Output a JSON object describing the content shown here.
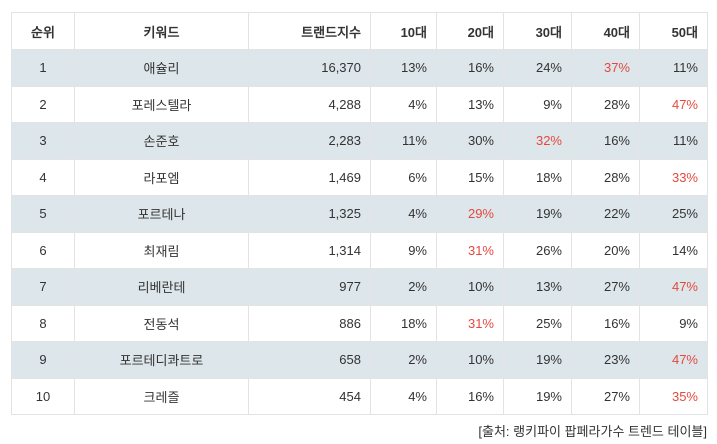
{
  "table": {
    "headers": {
      "rank": "순위",
      "keyword": "키워드",
      "index": "트랜드지수",
      "age10": "10대",
      "age20": "20대",
      "age30": "30대",
      "age40": "40대",
      "age50": "50대"
    },
    "highlight_color": "#e4493f",
    "shade_color": "#dde6ea",
    "rows": [
      {
        "rank": "1",
        "keyword": "애슐리",
        "index": "16,370",
        "age10": "13%",
        "age20": "16%",
        "age30": "24%",
        "age40": "37%",
        "age50": "11%",
        "highlight": "age40"
      },
      {
        "rank": "2",
        "keyword": "포레스텔라",
        "index": "4,288",
        "age10": "4%",
        "age20": "13%",
        "age30": "9%",
        "age40": "28%",
        "age50": "47%",
        "highlight": "age50"
      },
      {
        "rank": "3",
        "keyword": "손준호",
        "index": "2,283",
        "age10": "11%",
        "age20": "30%",
        "age30": "32%",
        "age40": "16%",
        "age50": "11%",
        "highlight": "age30"
      },
      {
        "rank": "4",
        "keyword": "라포엠",
        "index": "1,469",
        "age10": "6%",
        "age20": "15%",
        "age30": "18%",
        "age40": "28%",
        "age50": "33%",
        "highlight": "age50"
      },
      {
        "rank": "5",
        "keyword": "포르테나",
        "index": "1,325",
        "age10": "4%",
        "age20": "29%",
        "age30": "19%",
        "age40": "22%",
        "age50": "25%",
        "highlight": "age20"
      },
      {
        "rank": "6",
        "keyword": "최재림",
        "index": "1,314",
        "age10": "9%",
        "age20": "31%",
        "age30": "26%",
        "age40": "20%",
        "age50": "14%",
        "highlight": "age20"
      },
      {
        "rank": "7",
        "keyword": "리베란테",
        "index": "977",
        "age10": "2%",
        "age20": "10%",
        "age30": "13%",
        "age40": "27%",
        "age50": "47%",
        "highlight": "age50"
      },
      {
        "rank": "8",
        "keyword": "전동석",
        "index": "886",
        "age10": "18%",
        "age20": "31%",
        "age30": "25%",
        "age40": "16%",
        "age50": "9%",
        "highlight": "age20"
      },
      {
        "rank": "9",
        "keyword": "포르테디콰트로",
        "index": "658",
        "age10": "2%",
        "age20": "10%",
        "age30": "19%",
        "age40": "23%",
        "age50": "47%",
        "highlight": "age50"
      },
      {
        "rank": "10",
        "keyword": "크레즐",
        "index": "454",
        "age10": "4%",
        "age20": "16%",
        "age30": "19%",
        "age40": "27%",
        "age50": "35%",
        "highlight": "age50"
      }
    ]
  },
  "source": "[출처: 랭키파이 팝페라가수 트렌드 테이블]"
}
